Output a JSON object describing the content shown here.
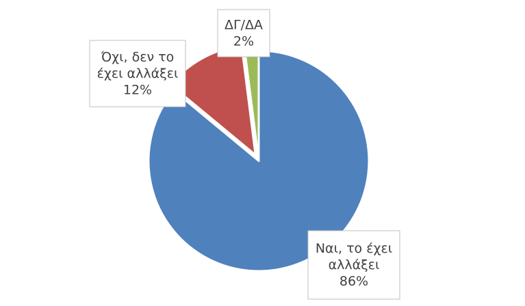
{
  "chart_data": {
    "type": "pie",
    "title": "",
    "slices": [
      {
        "label_lines": [
          "Ναι, το έχει",
          "αλλάξει"
        ],
        "value": 86,
        "value_label": "86%",
        "color": "#4f81bd"
      },
      {
        "label_lines": [
          "Όχι, δεν το",
          "έχει αλλάξει"
        ],
        "value": 12,
        "value_label": "12%",
        "color": "#c0504d"
      },
      {
        "label_lines": [
          "ΔΓ/ΔΑ"
        ],
        "value": 2,
        "value_label": "2%",
        "color": "#9bbb59"
      }
    ],
    "legend": "none",
    "data_labels": "callout boxes"
  }
}
